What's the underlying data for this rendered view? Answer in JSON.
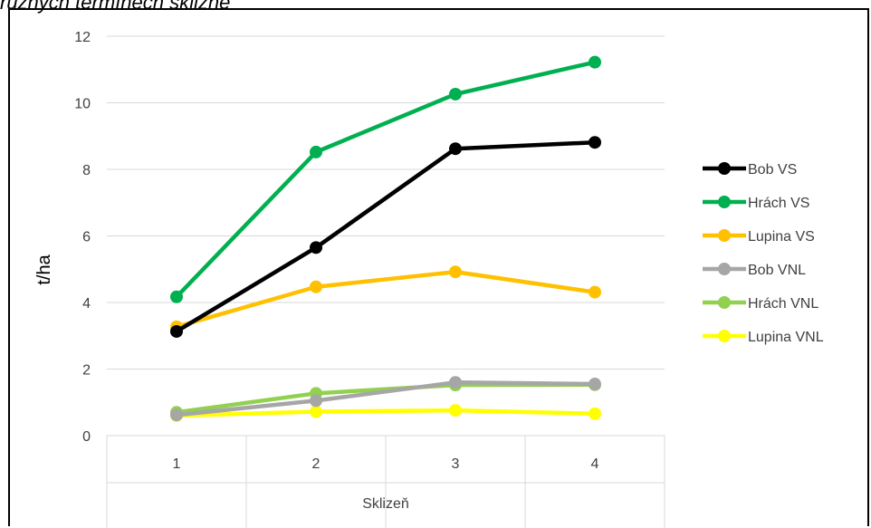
{
  "header": {
    "title_fragment": "různých termínech sklizně"
  },
  "chart_data": {
    "type": "line",
    "categories": [
      "1",
      "2",
      "3",
      "4"
    ],
    "xlabel": "Sklizeň",
    "ylabel": "t/ha",
    "ylim": [
      0,
      12
    ],
    "yticks": [
      "0",
      "2",
      "4",
      "6",
      "8",
      "10",
      "12"
    ],
    "grid": true,
    "legend_position": "right",
    "series": [
      {
        "name": "Bob VS",
        "color": "#000000",
        "values": [
          3.13,
          5.65,
          8.62,
          8.81
        ]
      },
      {
        "name": "Hrách VS",
        "color": "#00b050",
        "values": [
          4.17,
          8.52,
          10.26,
          11.22
        ]
      },
      {
        "name": "Lupina VS",
        "color": "#ffc000",
        "values": [
          3.27,
          4.47,
          4.92,
          4.31
        ]
      },
      {
        "name": "Bob VNL",
        "color": "#a6a6a6",
        "values": [
          0.62,
          1.05,
          1.6,
          1.55
        ]
      },
      {
        "name": "Hrách VNL",
        "color": "#92d050",
        "values": [
          0.7,
          1.27,
          1.52,
          1.53
        ]
      },
      {
        "name": "Lupina VNL",
        "color": "#ffff00",
        "values": [
          0.6,
          0.72,
          0.76,
          0.66
        ]
      }
    ]
  }
}
